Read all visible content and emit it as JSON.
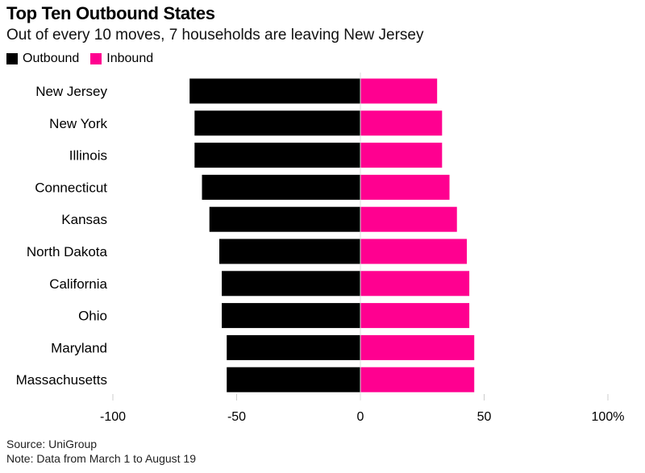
{
  "title": "Top Ten Outbound States",
  "subtitle": "Out of every 10 moves, 7 households are leaving New Jersey",
  "legend": {
    "outbound_label": "Outbound",
    "inbound_label": "Inbound"
  },
  "colors": {
    "outbound": "#000000",
    "inbound": "#ff0090",
    "axis": "#cccccc"
  },
  "footer": {
    "source": "Source: UniGroup",
    "note": "Note: Data from March 1 to August 19"
  },
  "chart_data": {
    "type": "bar",
    "orientation": "horizontal",
    "stacked": "diverging",
    "categories": [
      "New Jersey",
      "New York",
      "Illinois",
      "Connecticut",
      "Kansas",
      "North Dakota",
      "California",
      "Ohio",
      "Maryland",
      "Massachusetts"
    ],
    "series": [
      {
        "name": "Outbound",
        "values": [
          -69,
          -67,
          -67,
          -64,
          -61,
          -57,
          -56,
          -56,
          -54,
          -54
        ]
      },
      {
        "name": "Inbound",
        "values": [
          31,
          33,
          33,
          36,
          39,
          43,
          44,
          44,
          46,
          46
        ]
      }
    ],
    "xlim": [
      -100,
      100
    ],
    "xticks": [
      -100,
      -50,
      0,
      50,
      100
    ],
    "xtick_labels": [
      "-100",
      "-50",
      "0",
      "50",
      "100%"
    ],
    "grid": true,
    "legend_position": "top-left"
  }
}
